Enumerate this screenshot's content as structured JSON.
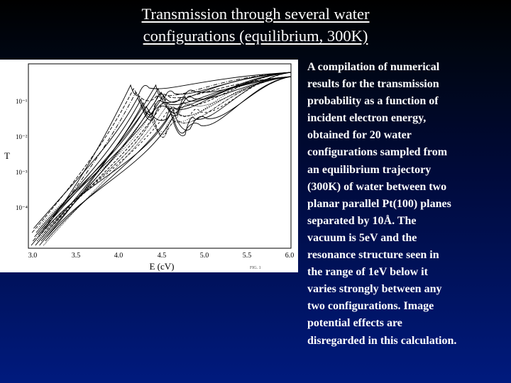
{
  "slide": {
    "title_lines": [
      "Transmission through several water",
      "configurations (equilibrium, 300K)"
    ]
  },
  "figure": {
    "ylabel": "T",
    "xlabel": "E (cV)",
    "y_ticks": [
      "10⁻¹",
      "10⁻²",
      "10⁻³",
      "10⁻⁴"
    ],
    "x_ticks": [
      "3.0",
      "3.5",
      "4.0",
      "4.5",
      "5.0",
      "5.5",
      "6.0"
    ],
    "footnote": "FIG. 1",
    "line_color": "#000000"
  },
  "caption": {
    "lines": [
      "A compilation of numerical",
      "results for the transmission",
      "probability as a function of",
      "incident electron energy,",
      "obtained for 20 water",
      "configurations sampled from",
      "an equilibrium trajectory",
      "(300K) of water between two",
      "planar parallel Pt(100) planes",
      "separated by 10Å. The",
      "vacuum is 5eV and the",
      "resonance structure seen in",
      "the range of 1eV below it",
      "varies strongly between any",
      "two configurations. Image",
      "potential effects are",
      "disregarded in this calculation."
    ]
  }
}
